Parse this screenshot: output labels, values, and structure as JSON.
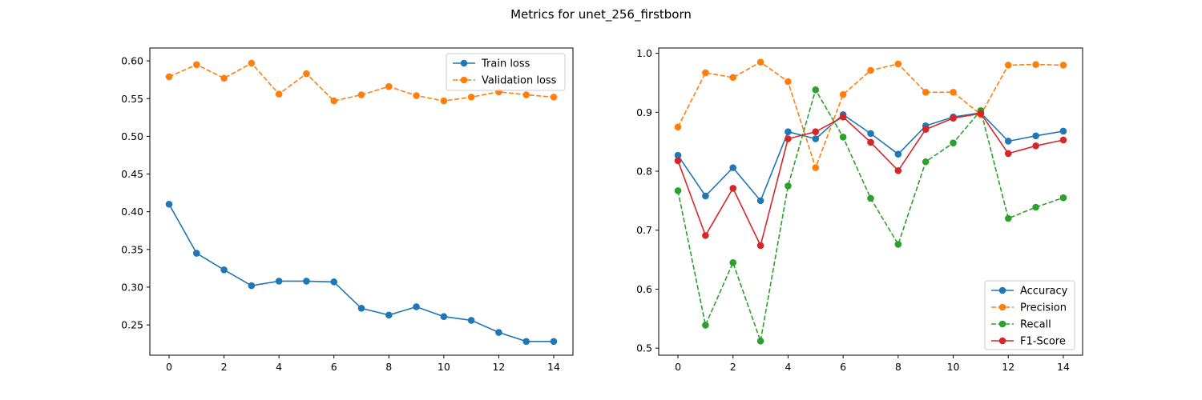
{
  "figure_title": "Metrics for unet_256_firstborn",
  "chart_data": [
    {
      "type": "line",
      "title": "",
      "xlabel": "",
      "ylabel": "",
      "x": [
        0,
        1,
        2,
        3,
        4,
        5,
        6,
        7,
        8,
        9,
        10,
        11,
        12,
        13,
        14
      ],
      "xticks": [
        0,
        2,
        4,
        6,
        8,
        10,
        12,
        14
      ],
      "xlim": [
        -0.7,
        14.7
      ],
      "yticks": [
        0.25,
        0.3,
        0.35,
        0.4,
        0.45,
        0.5,
        0.55,
        0.6
      ],
      "ytick_labels": [
        "0.25",
        "0.30",
        "0.35",
        "0.40",
        "0.45",
        "0.50",
        "0.55",
        "0.60"
      ],
      "ylim": [
        0.2098,
        0.6171
      ],
      "grid": false,
      "legend_position": "upper right",
      "series": [
        {
          "name": "Train loss",
          "color": "#1f77b4",
          "linestyle": "solid",
          "marker": "circle",
          "values": [
            0.41,
            0.345,
            0.323,
            0.302,
            0.308,
            0.308,
            0.307,
            0.272,
            0.263,
            0.274,
            0.261,
            0.256,
            0.24,
            0.228,
            0.228
          ]
        },
        {
          "name": "Validation loss",
          "color": "#ff7f0e",
          "linestyle": "dashed",
          "marker": "circle",
          "values": [
            0.579,
            0.595,
            0.577,
            0.597,
            0.556,
            0.583,
            0.547,
            0.555,
            0.566,
            0.554,
            0.547,
            0.552,
            0.559,
            0.555,
            0.552
          ]
        }
      ]
    },
    {
      "type": "line",
      "title": "",
      "xlabel": "",
      "ylabel": "",
      "x": [
        0,
        1,
        2,
        3,
        4,
        5,
        6,
        7,
        8,
        9,
        10,
        11,
        12,
        13,
        14
      ],
      "xticks": [
        0,
        2,
        4,
        6,
        8,
        10,
        12,
        14
      ],
      "xlim": [
        -0.7,
        14.7
      ],
      "yticks": [
        0.5,
        0.6,
        0.7,
        0.8,
        0.9,
        1.0
      ],
      "ytick_labels": [
        "0.5",
        "0.6",
        "0.7",
        "0.8",
        "0.9",
        "1.0"
      ],
      "ylim": [
        0.488,
        1.009
      ],
      "grid": false,
      "legend_position": "lower right",
      "series": [
        {
          "name": "Accuracy",
          "color": "#1f77b4",
          "linestyle": "solid",
          "marker": "circle",
          "values": [
            0.827,
            0.758,
            0.806,
            0.75,
            0.867,
            0.855,
            0.896,
            0.864,
            0.829,
            0.877,
            0.892,
            0.899,
            0.851,
            0.86,
            0.868
          ]
        },
        {
          "name": "Precision",
          "color": "#ff7f0e",
          "linestyle": "dashed",
          "marker": "circle",
          "values": [
            0.875,
            0.967,
            0.959,
            0.985,
            0.952,
            0.806,
            0.93,
            0.971,
            0.982,
            0.934,
            0.934,
            0.896,
            0.98,
            0.981,
            0.98
          ]
        },
        {
          "name": "Recall",
          "color": "#2ca02c",
          "linestyle": "dashed",
          "marker": "circle",
          "values": [
            0.767,
            0.539,
            0.645,
            0.512,
            0.775,
            0.938,
            0.858,
            0.754,
            0.676,
            0.816,
            0.848,
            0.903,
            0.72,
            0.739,
            0.755
          ]
        },
        {
          "name": "F1-Score",
          "color": "#d62728",
          "linestyle": "solid",
          "marker": "circle",
          "values": [
            0.818,
            0.691,
            0.771,
            0.674,
            0.855,
            0.867,
            0.892,
            0.849,
            0.801,
            0.871,
            0.89,
            0.898,
            0.83,
            0.843,
            0.853
          ]
        }
      ]
    }
  ]
}
